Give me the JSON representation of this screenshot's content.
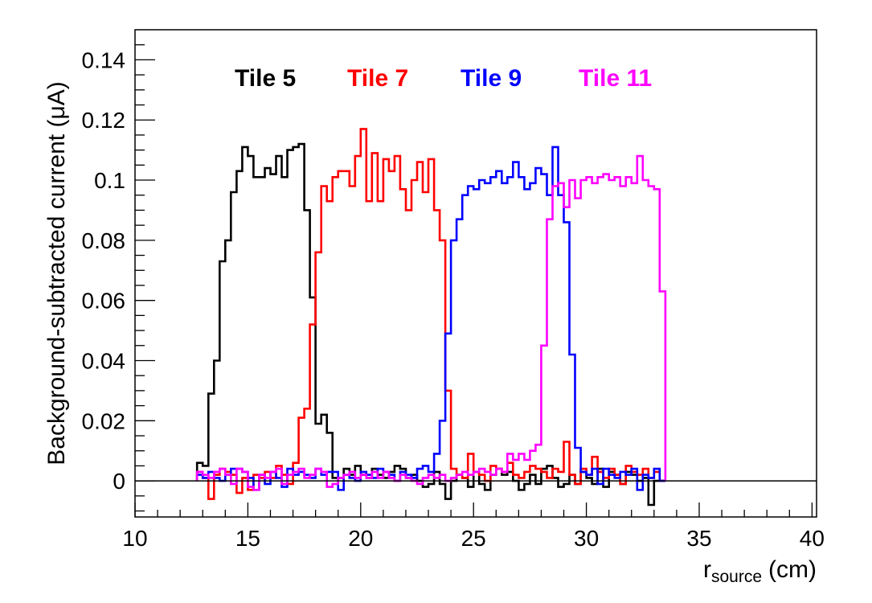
{
  "chart_data": {
    "type": "line",
    "style": "step-histogram",
    "xlabel_main": "r",
    "xlabel_sub": "source",
    "xlabel_unit": "(cm)",
    "ylabel": "Background-subtracted current (μA)",
    "xlim": [
      10,
      40.2
    ],
    "ylim": [
      -0.012,
      0.15
    ],
    "x_ticks": [
      10,
      15,
      20,
      25,
      30,
      35,
      40
    ],
    "x_tick_labels": [
      "10",
      "15",
      "20",
      "25",
      "30",
      "35",
      "40"
    ],
    "y_ticks": [
      0,
      0.02,
      0.04,
      0.06,
      0.08,
      0.1,
      0.12,
      0.14
    ],
    "y_tick_labels": [
      "0",
      "0.02",
      "0.04",
      "0.06",
      "0.08",
      "0.1",
      "0.12",
      "0.14"
    ],
    "grid": false,
    "legend": "top",
    "series": [
      {
        "name": "Tile 5",
        "color": "#000000",
        "x_start": 12.75,
        "bin_width": 0.25,
        "values": [
          0.006,
          0.005,
          0.029,
          0.04,
          0.073,
          0.08,
          0.096,
          0.103,
          0.111,
          0.108,
          0.101,
          0.101,
          0.104,
          0.102,
          0.108,
          0.101,
          0.11,
          0.111,
          0.112,
          0.09,
          0.061,
          0.019,
          0.022,
          0.016,
          0.001,
          0.001,
          0.004,
          0.002,
          0.005,
          0.002,
          0.001,
          0.004,
          0.002,
          0.001,
          0.003,
          0.005,
          0.004,
          0.001,
          0.002,
          0.0,
          -0.002,
          -0.001,
          0.003,
          -0.001,
          -0.006,
          0.0,
          0.002,
          0.001,
          -0.002,
          0.003,
          -0.001,
          -0.003,
          0.002,
          0.004,
          0.002,
          0.003,
          0.0,
          -0.003,
          -0.001,
          0.002,
          -0.001,
          0.004,
          0.005,
          0.001,
          -0.002,
          -0.001,
          0.002,
          -0.001,
          0.003,
          0.001,
          -0.001,
          0.004,
          -0.002,
          0.003,
          0.002,
          -0.001,
          0.003,
          0.002,
          0.0,
          0.001,
          -0.008,
          0.0,
          0.0
        ]
      },
      {
        "name": "Tile 7",
        "color": "#ff0000",
        "x_start": 12.75,
        "bin_width": 0.25,
        "values": [
          0.003,
          0.001,
          -0.006,
          0.002,
          0.004,
          0.003,
          0.002,
          -0.004,
          0.001,
          -0.003,
          0.002,
          0.001,
          0.003,
          0.001,
          0.005,
          0.002,
          -0.001,
          0.006,
          0.021,
          0.024,
          0.052,
          0.076,
          0.098,
          0.093,
          0.101,
          0.103,
          0.103,
          0.098,
          0.108,
          0.117,
          0.093,
          0.109,
          0.093,
          0.107,
          0.103,
          0.108,
          0.097,
          0.09,
          0.1,
          0.106,
          0.096,
          0.107,
          0.09,
          0.08,
          0.03,
          0.004,
          0.002,
          0.001,
          0.009,
          0.003,
          0.002,
          0.0,
          0.005,
          0.004,
          0.003,
          0.006,
          0.002,
          0.001,
          0.003,
          0.005,
          0.004,
          0.003,
          0.001,
          0.004,
          0.003,
          0.013,
          0.002,
          -0.001,
          0.004,
          0.002,
          0.008,
          0.003,
          0.001,
          0.004,
          0.002,
          -0.001,
          0.005,
          0.003,
          0.002,
          0.004,
          0.001,
          0.003,
          0.0
        ]
      },
      {
        "name": "Tile 9",
        "color": "#0000ff",
        "x_start": 12.75,
        "bin_width": 0.25,
        "values": [
          0.002,
          0.001,
          0.003,
          0.001,
          0.0,
          0.002,
          0.004,
          0.004,
          0.003,
          0.001,
          -0.003,
          0.002,
          -0.001,
          0.003,
          0.001,
          -0.002,
          0.004,
          0.002,
          0.003,
          0.002,
          0.001,
          0.004,
          0.002,
          0.003,
          0.003,
          -0.003,
          0.002,
          0.001,
          0.0,
          0.003,
          0.002,
          0.001,
          0.004,
          0.003,
          0.002,
          0.0,
          0.003,
          0.002,
          0.001,
          0.004,
          0.005,
          0.003,
          0.009,
          0.02,
          0.049,
          0.08,
          0.087,
          0.095,
          0.098,
          0.097,
          0.1,
          0.099,
          0.101,
          0.103,
          0.099,
          0.101,
          0.106,
          0.101,
          0.097,
          0.099,
          0.104,
          0.102,
          0.095,
          0.111,
          0.095,
          0.086,
          0.042,
          0.011,
          0.003,
          0.002,
          0.004,
          -0.001,
          0.004,
          0.002,
          0.001,
          0.003,
          0.002,
          0.004,
          -0.003,
          0.002,
          0.001,
          0.004,
          0.0
        ]
      },
      {
        "name": "Tile 11",
        "color": "#ff00ff",
        "x_start": 12.75,
        "bin_width": 0.25,
        "values": [
          0.003,
          0.002,
          0.001,
          0.003,
          0.004,
          0.002,
          -0.001,
          0.004,
          0.003,
          -0.002,
          -0.003,
          0.002,
          0.001,
          0.003,
          0.004,
          -0.001,
          0.002,
          0.003,
          0.004,
          0.001,
          0.002,
          0.004,
          0.003,
          -0.002,
          -0.001,
          0.001,
          0.002,
          0.003,
          0.001,
          0.002,
          0.001,
          0.003,
          0.001,
          0.003,
          0.001,
          0.0,
          0.002,
          0.001,
          0.0,
          -0.001,
          0.001,
          0.002,
          0.001,
          0.002,
          0.0,
          0.001,
          0.002,
          0.003,
          0.002,
          0.003,
          0.004,
          0.003,
          0.002,
          0.004,
          0.003,
          0.009,
          0.007,
          0.009,
          0.007,
          0.01,
          0.012,
          0.045,
          0.087,
          0.098,
          0.099,
          0.091,
          0.1,
          0.094,
          0.1,
          0.101,
          0.099,
          0.101,
          0.102,
          0.1,
          0.101,
          0.098,
          0.101,
          0.099,
          0.108,
          0.1,
          0.098,
          0.097,
          0.063
        ]
      }
    ]
  }
}
